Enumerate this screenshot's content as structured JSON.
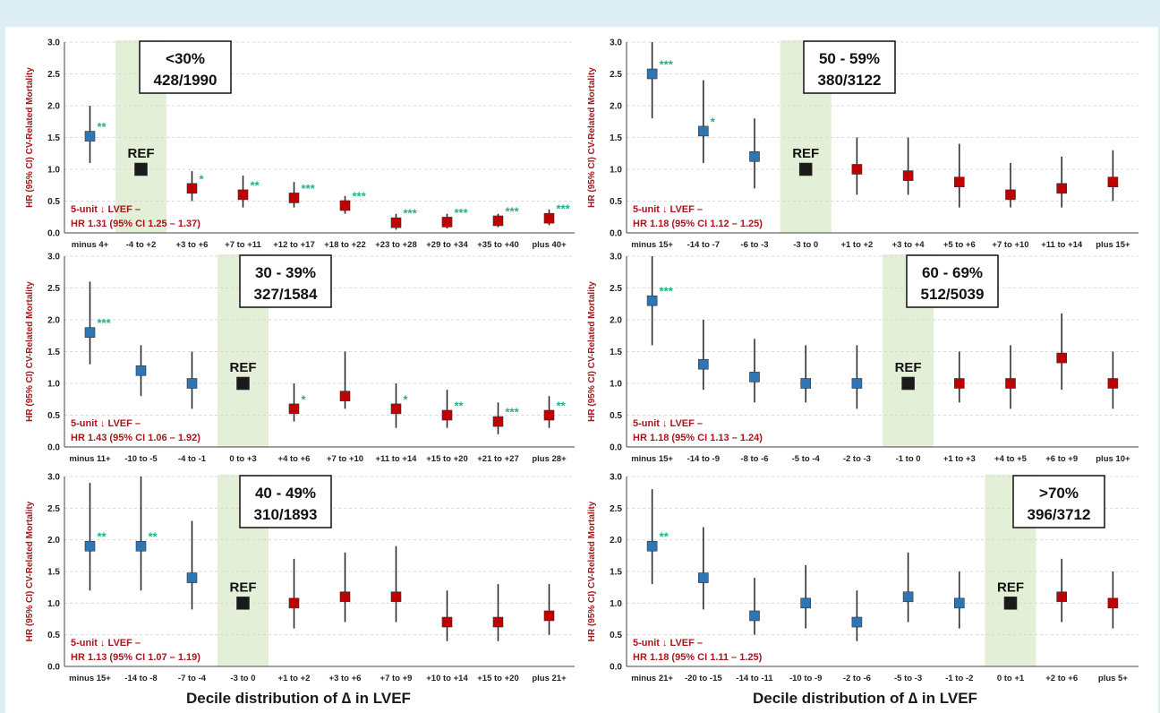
{
  "colors": {
    "reference": "#1a1a1a",
    "lower_delta": "#2e75b6",
    "higher_delta": "#c00000",
    "stars": "#21b08a",
    "ref_band": "#e3efd6",
    "note": "#a8161c"
  },
  "y_axis_title": "HR (95% CI) CV-Related Mortality",
  "footers": {
    "left": "Decile distribution of ∆ in LVEF",
    "right": "Decile distribution of ∆ in LVEF"
  },
  "chart_data": [
    {
      "type": "scatter",
      "panel": "top-left",
      "box_lines": [
        "<30%",
        "428/1990"
      ],
      "ref_label": "REF",
      "ref_index": 1,
      "note_lines": [
        "5-unit ↓ LVEF –",
        "HR 1.31 (95% CI 1.25 – 1.37)"
      ],
      "ylim": [
        0,
        3
      ],
      "yticks": [
        "0.0",
        "0.5",
        "1.0",
        "1.5",
        "2.0",
        "2.5",
        "3.0"
      ],
      "ylabel": "HR (95% CI) CV-Related Mortality",
      "categories": [
        "minus 4+",
        "-4 to +2",
        "+3 to +6",
        "+7 to +11",
        "+12 to +17",
        "+18 to +22",
        "+23 to +28",
        "+29 to +34",
        "+35 to +40",
        "plus 40+"
      ],
      "hr": [
        1.52,
        1.0,
        0.7,
        0.6,
        0.55,
        0.43,
        0.16,
        0.17,
        0.19,
        0.23
      ],
      "low": [
        1.1,
        1.0,
        0.5,
        0.4,
        0.4,
        0.3,
        0.05,
        0.07,
        0.09,
        0.12
      ],
      "high": [
        2.0,
        1.0,
        0.97,
        0.9,
        0.8,
        0.58,
        0.3,
        0.3,
        0.3,
        0.37
      ],
      "stars": [
        "**",
        "",
        "*",
        "**",
        "***",
        "***",
        "***",
        "***",
        "***",
        "***"
      ]
    },
    {
      "type": "scatter",
      "panel": "top-right",
      "box_lines": [
        "50 - 59%",
        "380/3122"
      ],
      "ref_label": "REF",
      "ref_index": 3,
      "note_lines": [
        "5-unit ↓ LVEF –",
        "HR 1.18 (95% CI 1.12 – 1.25)"
      ],
      "ylim": [
        0,
        3
      ],
      "yticks": [
        "0.0",
        "0.5",
        "1.0",
        "1.5",
        "2.0",
        "2.5",
        "3.0"
      ],
      "ylabel": "HR (95% CI) CV-Related Mortality",
      "categories": [
        "minus 15+",
        "-14 to -7",
        "-6 to -3",
        "-3 to 0",
        "+1 to +2",
        "+3 to +4",
        "+5 to +6",
        "+7 to +10",
        "+11 to +14",
        "plus 15+"
      ],
      "hr": [
        2.5,
        1.6,
        1.2,
        1.0,
        1.0,
        0.9,
        0.8,
        0.6,
        0.7,
        0.8
      ],
      "low": [
        1.8,
        1.1,
        0.7,
        1.0,
        0.6,
        0.6,
        0.4,
        0.4,
        0.4,
        0.5
      ],
      "high": [
        3.0,
        2.4,
        1.8,
        1.0,
        1.5,
        1.5,
        1.4,
        1.1,
        1.2,
        1.3
      ],
      "stars": [
        "***",
        "*",
        "",
        "",
        "",
        "",
        "",
        "",
        "",
        ""
      ]
    },
    {
      "type": "scatter",
      "panel": "middle-left",
      "box_lines": [
        "30 - 39%",
        "327/1584"
      ],
      "ref_label": "REF",
      "ref_index": 3,
      "note_lines": [
        "5-unit ↓ LVEF –",
        "HR 1.43 (95% CI 1.06 – 1.92)"
      ],
      "ylim": [
        0,
        3
      ],
      "yticks": [
        "0.0",
        "0.5",
        "1.0",
        "1.5",
        "2.0",
        "2.5",
        "3.0"
      ],
      "ylabel": "HR (95% CI) CV-Related Mortality",
      "categories": [
        "minus 11+",
        "-10 to -5",
        "-4 to -1",
        "0 to +3",
        "+4 to +6",
        "+7 to +10",
        "+11 to +14",
        "+15 to +20",
        "+21 to +27",
        "plus 28+"
      ],
      "hr": [
        1.8,
        1.2,
        1.0,
        1.0,
        0.6,
        0.8,
        0.6,
        0.5,
        0.4,
        0.5
      ],
      "low": [
        1.3,
        0.8,
        0.6,
        1.0,
        0.4,
        0.6,
        0.3,
        0.3,
        0.2,
        0.3
      ],
      "high": [
        2.6,
        1.6,
        1.5,
        1.0,
        1.0,
        1.5,
        1.0,
        0.9,
        0.7,
        0.8
      ],
      "stars": [
        "***",
        "",
        "",
        "",
        "*",
        "",
        "*",
        "**",
        "***",
        "**"
      ]
    },
    {
      "type": "scatter",
      "panel": "middle-right",
      "box_lines": [
        "60 - 69%",
        "512/5039"
      ],
      "ref_label": "REF",
      "ref_index": 5,
      "note_lines": [
        "5-unit ↓ LVEF –",
        "HR 1.18 (95% CI 1.13 – 1.24)"
      ],
      "ylim": [
        0,
        3
      ],
      "yticks": [
        "0.0",
        "0.5",
        "1.0",
        "1.5",
        "2.0",
        "2.5",
        "3.0"
      ],
      "ylabel": "HR (95% CI) CV-Related Mortality",
      "categories": [
        "minus 15+",
        "-14 to -9",
        "-8 to -6",
        "-5 to -4",
        "-2 to -3",
        "-1 to 0",
        "+1 to +3",
        "+4 to +5",
        "+6 to +9",
        "plus 10+"
      ],
      "hr": [
        2.3,
        1.3,
        1.1,
        1.0,
        1.0,
        1.0,
        1.0,
        1.0,
        1.4,
        1.0
      ],
      "low": [
        1.6,
        0.9,
        0.7,
        0.7,
        0.6,
        1.0,
        0.7,
        0.6,
        0.9,
        0.6
      ],
      "high": [
        3.0,
        2.0,
        1.7,
        1.6,
        1.6,
        1.0,
        1.5,
        1.6,
        2.1,
        1.5
      ],
      "stars": [
        "***",
        "",
        "",
        "",
        "",
        "",
        "",
        "",
        "",
        ""
      ]
    },
    {
      "type": "scatter",
      "panel": "bottom-left",
      "box_lines": [
        "40 - 49%",
        "310/1893"
      ],
      "ref_label": "REF",
      "ref_index": 3,
      "note_lines": [
        "5-unit ↓ LVEF –",
        "HR 1.13 (95% CI 1.07 – 1.19)"
      ],
      "ylim": [
        0,
        3
      ],
      "yticks": [
        "0.0",
        "0.5",
        "1.0",
        "1.5",
        "2.0",
        "2.5",
        "3.0"
      ],
      "ylabel": "HR (95% CI) CV-Related Mortality",
      "categories": [
        "minus 15+",
        "-14 to -8",
        "-7 to -4",
        "-3 to 0",
        "+1 to +2",
        "+3 to +6",
        "+7 to +9",
        "+10 to +14",
        "+15 to +20",
        "plus 21+"
      ],
      "hr": [
        1.9,
        1.9,
        1.4,
        1.0,
        1.0,
        1.1,
        1.1,
        0.7,
        0.7,
        0.8
      ],
      "low": [
        1.2,
        1.2,
        0.9,
        1.0,
        0.6,
        0.7,
        0.7,
        0.4,
        0.4,
        0.5
      ],
      "high": [
        2.9,
        3.0,
        2.3,
        1.0,
        1.7,
        1.8,
        1.9,
        1.2,
        1.3,
        1.3
      ],
      "stars": [
        "**",
        "**",
        "",
        "",
        "",
        "",
        "",
        "",
        "",
        ""
      ]
    },
    {
      "type": "scatter",
      "panel": "bottom-right",
      "box_lines": [
        ">70%",
        "396/3712"
      ],
      "ref_label": "REF",
      "ref_index": 7,
      "note_lines": [
        "5-unit ↓ LVEF –",
        "HR 1.18 (95% CI 1.11 – 1.25)"
      ],
      "ylim": [
        0,
        3
      ],
      "yticks": [
        "0.0",
        "0.5",
        "1.0",
        "1.5",
        "2.0",
        "2.5",
        "3.0"
      ],
      "ylabel": "HR (95% CI) CV-Related Mortality",
      "categories": [
        "minus 21+",
        "-20 to -15",
        "-14 to -11",
        "-10 to -9",
        "-2 to -6",
        "-5 to -3",
        "-1 to -2",
        "0 to +1",
        "+2 to +6",
        "plus 5+"
      ],
      "hr": [
        1.9,
        1.4,
        0.8,
        1.0,
        0.7,
        1.1,
        1.0,
        1.0,
        1.1,
        1.0
      ],
      "low": [
        1.3,
        0.9,
        0.5,
        0.6,
        0.4,
        0.7,
        0.6,
        1.0,
        0.7,
        0.6
      ],
      "high": [
        2.8,
        2.2,
        1.4,
        1.6,
        1.2,
        1.8,
        1.5,
        1.0,
        1.7,
        1.5
      ],
      "stars": [
        "**",
        "",
        "",
        "",
        "",
        "",
        "",
        "",
        "",
        ""
      ]
    }
  ]
}
